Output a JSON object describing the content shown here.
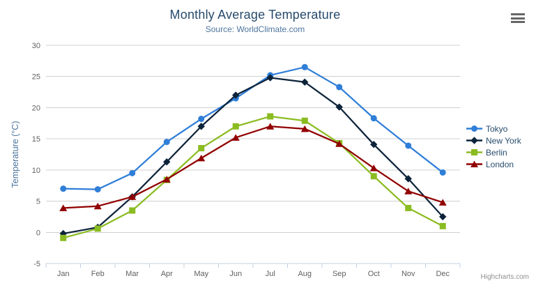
{
  "chart_data": {
    "type": "line",
    "title": "Monthly Average Temperature",
    "subtitle": "Source: WorldClimate.com",
    "categories": [
      "Jan",
      "Feb",
      "Mar",
      "Apr",
      "May",
      "Jun",
      "Jul",
      "Aug",
      "Sep",
      "Oct",
      "Nov",
      "Dec"
    ],
    "xlabel": "",
    "ylabel": "Temperature (°C)",
    "ylim": [
      -5,
      30
    ],
    "ytick_interval": 5,
    "grid": true,
    "legend_position": "right",
    "series": [
      {
        "name": "Tokyo",
        "color": "#2f7ed8",
        "marker": "circle",
        "values": [
          7.0,
          6.9,
          9.5,
          14.5,
          18.2,
          21.5,
          25.2,
          26.5,
          23.3,
          18.3,
          13.9,
          9.6
        ]
      },
      {
        "name": "New York",
        "color": "#0d233a",
        "marker": "diamond",
        "values": [
          -0.2,
          0.8,
          5.7,
          11.3,
          17.0,
          22.0,
          24.8,
          24.1,
          20.1,
          14.1,
          8.6,
          2.5
        ]
      },
      {
        "name": "Berlin",
        "color": "#8bbc21",
        "marker": "square",
        "values": [
          -0.9,
          0.6,
          3.5,
          8.4,
          13.5,
          17.0,
          18.6,
          17.9,
          14.3,
          9.0,
          3.9,
          1.0
        ]
      },
      {
        "name": "London",
        "color": "#910000",
        "marker": "triangle",
        "values": [
          3.9,
          4.2,
          5.7,
          8.5,
          11.9,
          15.2,
          17.0,
          16.6,
          14.2,
          10.3,
          6.6,
          4.8
        ]
      }
    ]
  },
  "credits": {
    "label": "Highcharts.com"
  },
  "theme": {
    "title_color": "#274b6d",
    "subtitle_color": "#4d759e",
    "axis_label_color": "#606060",
    "axis_title_color": "#4d759e",
    "grid_color": "#d0d0d0",
    "axis_line_color": "#c0d0e0",
    "legend_text_color": "#274b6d",
    "credits_color": "#909090",
    "menu_icon_color": "#666666",
    "background": "#ffffff"
  }
}
